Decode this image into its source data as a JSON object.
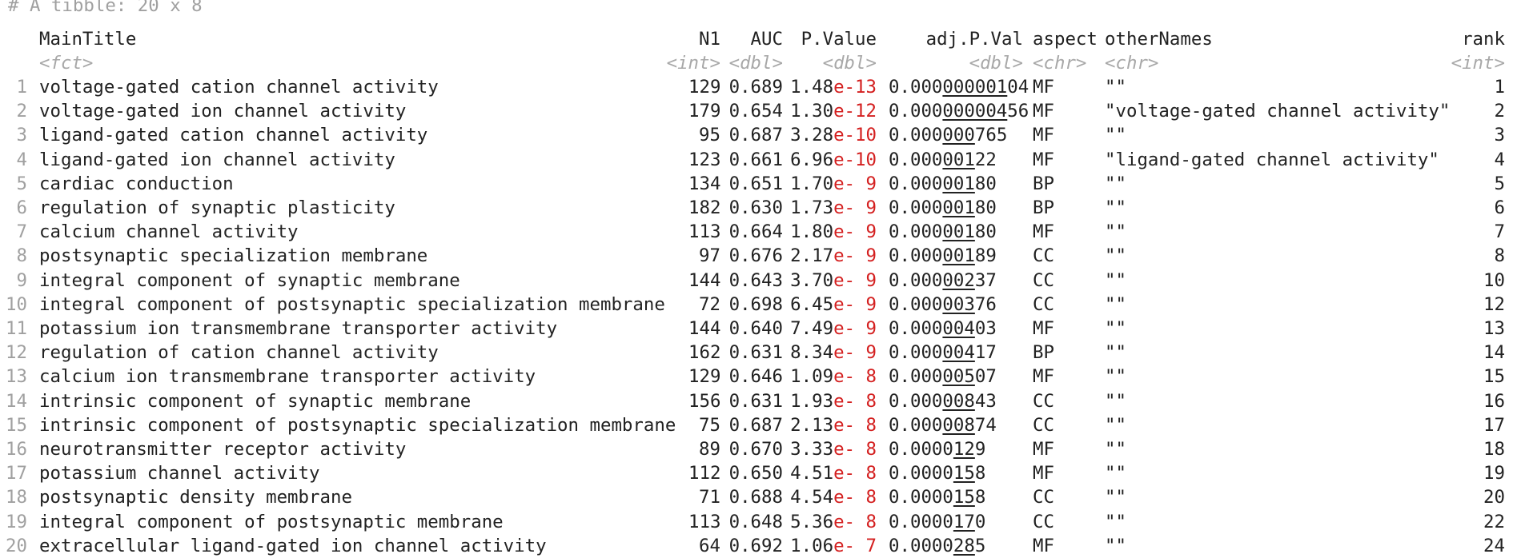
{
  "caption": "# A tibble: 20 x 8",
  "columns": [
    {
      "name": "MainTitle",
      "type": "<fct>"
    },
    {
      "name": "N1",
      "type": "<int>"
    },
    {
      "name": "AUC",
      "type": "<dbl>"
    },
    {
      "name": "P.Value",
      "type": "<dbl>"
    },
    {
      "name": "adj.P.Val",
      "type": "<dbl>"
    },
    {
      "name": "aspect",
      "type": "<chr>"
    },
    {
      "name": "otherNames",
      "type": "<chr>"
    },
    {
      "name": "rank",
      "type": "<int>"
    }
  ],
  "rows": [
    {
      "idx": "1",
      "title": "voltage-gated cation channel activity",
      "n1": "129",
      "auc": "0.689",
      "pv_mant": "1.48",
      "pv_exp": "e-13",
      "adj_pre": "0.000",
      "adj_ul": "000001",
      "adj_post": "04",
      "aspect": "MF",
      "other": "\"\"",
      "rank": "1"
    },
    {
      "idx": "2",
      "title": "voltage-gated ion channel activity",
      "n1": "179",
      "auc": "0.654",
      "pv_mant": "1.30",
      "pv_exp": "e-12",
      "adj_pre": "0.000",
      "adj_ul": "000004",
      "adj_post": "56",
      "aspect": "MF",
      "other": "\"voltage-gated channel activity\"",
      "rank": "2"
    },
    {
      "idx": "3",
      "title": "ligand-gated cation channel activity",
      "n1": "95",
      "auc": "0.687",
      "pv_mant": "3.28",
      "pv_exp": "e-10",
      "adj_pre": "0.000",
      "adj_ul": "000",
      "adj_post": "765",
      "aspect": "MF",
      "other": "\"\"",
      "rank": "3"
    },
    {
      "idx": "4",
      "title": "ligand-gated ion channel activity",
      "n1": "123",
      "auc": "0.661",
      "pv_mant": "6.96",
      "pv_exp": "e-10",
      "adj_pre": "0.000",
      "adj_ul": "001",
      "adj_post": "22",
      "aspect": "MF",
      "other": "\"ligand-gated channel activity\"",
      "rank": "4"
    },
    {
      "idx": "5",
      "title": "cardiac conduction",
      "n1": "134",
      "auc": "0.651",
      "pv_mant": "1.70",
      "pv_exp": "e- 9",
      "adj_pre": "0.000",
      "adj_ul": "001",
      "adj_post": "80",
      "aspect": "BP",
      "other": "\"\"",
      "rank": "5"
    },
    {
      "idx": "6",
      "title": "regulation of synaptic plasticity",
      "n1": "182",
      "auc": "0.630",
      "pv_mant": "1.73",
      "pv_exp": "e- 9",
      "adj_pre": "0.000",
      "adj_ul": "001",
      "adj_post": "80",
      "aspect": "BP",
      "other": "\"\"",
      "rank": "6"
    },
    {
      "idx": "7",
      "title": "calcium channel activity",
      "n1": "113",
      "auc": "0.664",
      "pv_mant": "1.80",
      "pv_exp": "e- 9",
      "adj_pre": "0.000",
      "adj_ul": "001",
      "adj_post": "80",
      "aspect": "MF",
      "other": "\"\"",
      "rank": "7"
    },
    {
      "idx": "8",
      "title": "postsynaptic specialization membrane",
      "n1": "97",
      "auc": "0.676",
      "pv_mant": "2.17",
      "pv_exp": "e- 9",
      "adj_pre": "0.000",
      "adj_ul": "001",
      "adj_post": "89",
      "aspect": "CC",
      "other": "\"\"",
      "rank": "8"
    },
    {
      "idx": "9",
      "title": "integral component of synaptic membrane",
      "n1": "144",
      "auc": "0.643",
      "pv_mant": "3.70",
      "pv_exp": "e- 9",
      "adj_pre": "0.000",
      "adj_ul": "002",
      "adj_post": "37",
      "aspect": "CC",
      "other": "\"\"",
      "rank": "10"
    },
    {
      "idx": "10",
      "title": "integral component of postsynaptic specialization membrane",
      "n1": "72",
      "auc": "0.698",
      "pv_mant": "6.45",
      "pv_exp": "e- 9",
      "adj_pre": "0.000",
      "adj_ul": "003",
      "adj_post": "76",
      "aspect": "CC",
      "other": "\"\"",
      "rank": "12"
    },
    {
      "idx": "11",
      "title": "potassium ion transmembrane transporter activity",
      "n1": "144",
      "auc": "0.640",
      "pv_mant": "7.49",
      "pv_exp": "e- 9",
      "adj_pre": "0.000",
      "adj_ul": "004",
      "adj_post": "03",
      "aspect": "MF",
      "other": "\"\"",
      "rank": "13"
    },
    {
      "idx": "12",
      "title": "regulation of cation channel activity",
      "n1": "162",
      "auc": "0.631",
      "pv_mant": "8.34",
      "pv_exp": "e- 9",
      "adj_pre": "0.000",
      "adj_ul": "004",
      "adj_post": "17",
      "aspect": "BP",
      "other": "\"\"",
      "rank": "14"
    },
    {
      "idx": "13",
      "title": "calcium ion transmembrane transporter activity",
      "n1": "129",
      "auc": "0.646",
      "pv_mant": "1.09",
      "pv_exp": "e- 8",
      "adj_pre": "0.000",
      "adj_ul": "005",
      "adj_post": "07",
      "aspect": "MF",
      "other": "\"\"",
      "rank": "15"
    },
    {
      "idx": "14",
      "title": "intrinsic component of synaptic membrane",
      "n1": "156",
      "auc": "0.631",
      "pv_mant": "1.93",
      "pv_exp": "e- 8",
      "adj_pre": "0.000",
      "adj_ul": "008",
      "adj_post": "43",
      "aspect": "CC",
      "other": "\"\"",
      "rank": "16"
    },
    {
      "idx": "15",
      "title": "intrinsic component of postsynaptic specialization membrane",
      "n1": "75",
      "auc": "0.687",
      "pv_mant": "2.13",
      "pv_exp": "e- 8",
      "adj_pre": "0.000",
      "adj_ul": "008",
      "adj_post": "74",
      "aspect": "CC",
      "other": "\"\"",
      "rank": "17"
    },
    {
      "idx": "16",
      "title": "neurotransmitter receptor activity",
      "n1": "89",
      "auc": "0.670",
      "pv_mant": "3.33",
      "pv_exp": "e- 8",
      "adj_pre": "0.0000",
      "adj_ul": "12",
      "adj_post": "9",
      "aspect": "MF",
      "other": "\"\"",
      "rank": "18"
    },
    {
      "idx": "17",
      "title": "potassium channel activity",
      "n1": "112",
      "auc": "0.650",
      "pv_mant": "4.51",
      "pv_exp": "e- 8",
      "adj_pre": "0.0000",
      "adj_ul": "15",
      "adj_post": "8",
      "aspect": "MF",
      "other": "\"\"",
      "rank": "19"
    },
    {
      "idx": "18",
      "title": "postsynaptic density membrane",
      "n1": "71",
      "auc": "0.688",
      "pv_mant": "4.54",
      "pv_exp": "e- 8",
      "adj_pre": "0.0000",
      "adj_ul": "15",
      "adj_post": "8",
      "aspect": "CC",
      "other": "\"\"",
      "rank": "20"
    },
    {
      "idx": "19",
      "title": "integral component of postsynaptic membrane",
      "n1": "113",
      "auc": "0.648",
      "pv_mant": "5.36",
      "pv_exp": "e- 8",
      "adj_pre": "0.0000",
      "adj_ul": "17",
      "adj_post": "0",
      "aspect": "CC",
      "other": "\"\"",
      "rank": "22"
    },
    {
      "idx": "20",
      "title": "extracellular ligand-gated ion channel activity",
      "n1": "64",
      "auc": "0.692",
      "pv_mant": "1.06",
      "pv_exp": "e- 7",
      "adj_pre": "0.0000",
      "adj_ul": "28",
      "adj_post": "5",
      "aspect": "MF",
      "other": "\"\"",
      "rank": "24"
    }
  ]
}
